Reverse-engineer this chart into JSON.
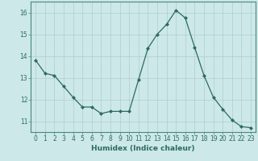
{
  "x": [
    0,
    1,
    2,
    3,
    4,
    5,
    6,
    7,
    8,
    9,
    10,
    11,
    12,
    13,
    14,
    15,
    16,
    17,
    18,
    19,
    20,
    21,
    22,
    23
  ],
  "y": [
    13.8,
    13.2,
    13.1,
    12.6,
    12.1,
    11.65,
    11.65,
    11.35,
    11.45,
    11.45,
    11.45,
    12.9,
    14.35,
    15.0,
    15.45,
    16.1,
    15.75,
    14.4,
    13.1,
    12.1,
    11.55,
    11.05,
    10.75,
    10.7
  ],
  "line_color": "#2e6b5e",
  "marker": "D",
  "marker_size": 2.0,
  "bg_color": "#cce8e8",
  "grid_color": "#b0cccc",
  "xlabel": "Humidex (Indice chaleur)",
  "ylim": [
    10.5,
    16.5
  ],
  "yticks": [
    11,
    12,
    13,
    14,
    15,
    16
  ],
  "xlim": [
    -0.5,
    23.5
  ],
  "xticks": [
    0,
    1,
    2,
    3,
    4,
    5,
    6,
    7,
    8,
    9,
    10,
    11,
    12,
    13,
    14,
    15,
    16,
    17,
    18,
    19,
    20,
    21,
    22,
    23
  ],
  "tick_fontsize": 5.5,
  "xlabel_fontsize": 6.5
}
